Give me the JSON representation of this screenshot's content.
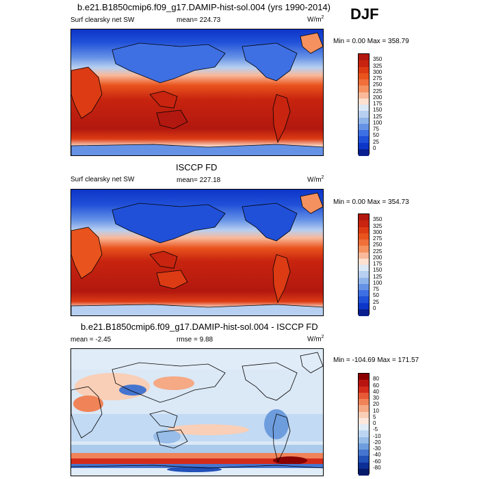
{
  "season": "DJF",
  "panels": [
    {
      "title": "b.e21.B1850cmip6.f09_g17.DAMIP-hist-sol.004 (yrs 1990-2014)",
      "left_label": "Surf clearsky net SW",
      "center_label": "mean= 224.73",
      "unit_base": "W/m",
      "unit_exp": "2",
      "minmax": "Min =   0.00 Max = 358.79",
      "ticks": [
        "350",
        "325",
        "300",
        "275",
        "250",
        "225",
        "200",
        "175",
        "150",
        "125",
        "100",
        "75",
        "50",
        "25",
        "0"
      ]
    },
    {
      "title": "ISCCP FD",
      "left_label": "Surf clearsky net SW",
      "center_label": "mean= 227.18",
      "unit_base": "W/m",
      "unit_exp": "2",
      "minmax": "Min =   0.00 Max = 354.73",
      "ticks": [
        "350",
        "325",
        "300",
        "275",
        "250",
        "225",
        "200",
        "175",
        "150",
        "125",
        "100",
        "75",
        "50",
        "25",
        "0"
      ]
    },
    {
      "title": "b.e21.B1850cmip6.f09_g17.DAMIP-hist-sol.004 - ISCCP FD",
      "left_label": "mean =  -2.45",
      "center_label": "rmse =   9.88",
      "unit_base": "W/m",
      "unit_exp": "2",
      "minmax": "Min = -104.69 Max = 171.57",
      "ticks": [
        "80",
        "60",
        "40",
        "30",
        "20",
        "10",
        "5",
        "0",
        "-5",
        "-10",
        "-20",
        "-30",
        "-40",
        "-60",
        "-80"
      ]
    }
  ],
  "colors": {
    "sw_scale": [
      "#b2180f",
      "#c8240f",
      "#dc3b14",
      "#e9531d",
      "#f06f3a",
      "#f5915f",
      "#f9b99a",
      "#fde0d0",
      "#dbe8f6",
      "#b7cff0",
      "#8fb4ea",
      "#6692e6",
      "#3e6fe3",
      "#2050d8",
      "#0d35c8",
      "#0a1f8e"
    ],
    "diff_scale": [
      "#8a0000",
      "#b81511",
      "#d42c1b",
      "#e85a36",
      "#f08358",
      "#f5a985",
      "#f9cfb7",
      "#fde8dc",
      "#e0ecf8",
      "#bcd6f2",
      "#97bde8",
      "#6e9dde",
      "#4675cf",
      "#2251b8",
      "#0c2f96",
      "#061a6b"
    ]
  }
}
